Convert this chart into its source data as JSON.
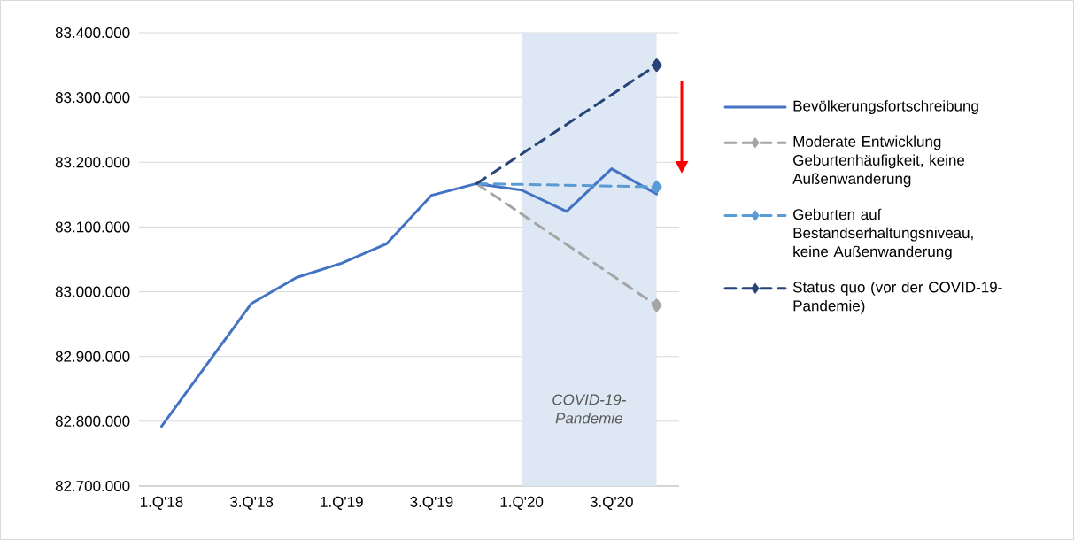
{
  "chart_data": {
    "type": "line",
    "categories": [
      "1.Q'18",
      null,
      "3.Q'18",
      null,
      "1.Q'19",
      null,
      "3.Q'19",
      null,
      "1.Q'20",
      null,
      "3.Q'20",
      null
    ],
    "series": [
      {
        "name": "Bevölkerungsfortschreibung",
        "color": "#4472c4",
        "line_style": "solid",
        "values": [
          82792000,
          82887000,
          82982000,
          83022000,
          83044000,
          83074000,
          83149000,
          83167000,
          83157000,
          83124000,
          83190000,
          83151000
        ]
      },
      {
        "name": "Moderate Entwicklung Geburtenhäufigkeit, keine Außenwanderung",
        "color": "#a5a5a5",
        "line_style": "dashed",
        "marker": "diamond",
        "values": [
          null,
          null,
          null,
          null,
          null,
          null,
          null,
          83167000,
          null,
          null,
          null,
          82979000
        ]
      },
      {
        "name": "Geburten auf Bestandserhaltungsniveau, keine Außenwanderung",
        "color": "#5b9bd5",
        "line_style": "dashed",
        "marker": "diamond",
        "values": [
          null,
          null,
          null,
          null,
          null,
          null,
          null,
          83167000,
          null,
          null,
          null,
          83162000
        ]
      },
      {
        "name": "Status quo (vor der COVID-19-Pandemie)",
        "color": "#264478",
        "line_style": "dashed",
        "marker": "diamond",
        "values": [
          null,
          null,
          null,
          null,
          null,
          null,
          null,
          83167000,
          null,
          null,
          null,
          83350000
        ]
      }
    ],
    "ylim": [
      82700000,
      83400000
    ],
    "yticks": [
      {
        "value": 82700000,
        "label": "82.700.000"
      },
      {
        "value": 82800000,
        "label": "82.800.000"
      },
      {
        "value": 82900000,
        "label": "82.900.000"
      },
      {
        "value": 83000000,
        "label": "83.000.000"
      },
      {
        "value": 83100000,
        "label": "83.100.000"
      },
      {
        "value": 83200000,
        "label": "83.200.000"
      },
      {
        "value": 83300000,
        "label": "83.300.000"
      },
      {
        "value": 83400000,
        "label": "83.400.000"
      }
    ],
    "annotations": [
      "*COVID-19-Pandemie*"
    ],
    "grid": "y",
    "legend": "right"
  }
}
